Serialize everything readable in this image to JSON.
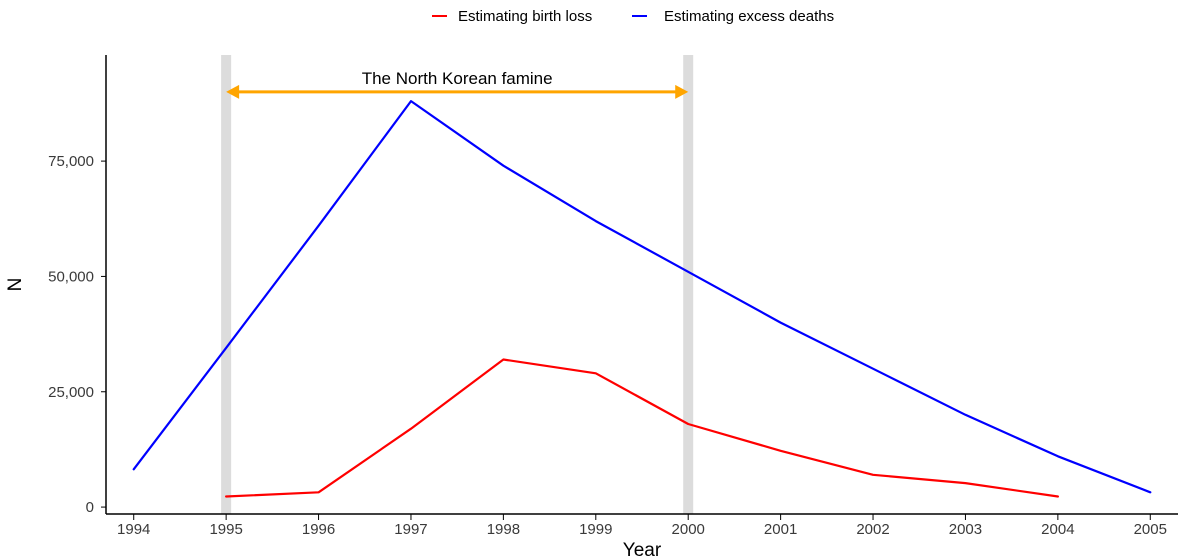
{
  "chart_data": {
    "type": "line",
    "title": "",
    "xlabel": "Year",
    "ylabel": "N",
    "x": [
      1994,
      1995,
      1996,
      1997,
      1998,
      1999,
      2000,
      2001,
      2002,
      2003,
      2004,
      2005
    ],
    "xlim": [
      1993.7,
      2005.3
    ],
    "ylim": [
      -1500,
      98000
    ],
    "y_ticks": [
      0,
      25000,
      50000,
      75000
    ],
    "y_tick_labels": [
      "0",
      "25,000",
      "50,000",
      "75,000"
    ],
    "x_tick_labels": [
      "1994",
      "1995",
      "1996",
      "1997",
      "1998",
      "1999",
      "2000",
      "2001",
      "2002",
      "2003",
      "2004",
      "2005"
    ],
    "grid": false,
    "legend_position": "top",
    "series": [
      {
        "name": "Estimating birth loss",
        "color": "#ff0000",
        "x": [
          1995,
          1996,
          1997,
          1998,
          1999,
          2000,
          2001,
          2002,
          2003,
          2004
        ],
        "values": [
          2300,
          3200,
          17000,
          32000,
          29000,
          18000,
          12200,
          7000,
          5200,
          2300
        ]
      },
      {
        "name": "Estimating excess deaths",
        "color": "#0000ff",
        "x": [
          1994,
          1995,
          1996,
          1997,
          1998,
          1999,
          2000,
          2001,
          2002,
          2003,
          2004,
          2005
        ],
        "values": [
          8200,
          34500,
          61000,
          88000,
          74000,
          62000,
          51000,
          40000,
          30000,
          20000,
          11000,
          3200
        ]
      }
    ],
    "annotations": {
      "shaded_years": [
        1995,
        2000
      ],
      "shade_color": "#dcdcdc",
      "arrow": {
        "from": 1995,
        "to": 2000,
        "y": 90000,
        "color": "#ffa500",
        "label": "The North Korean famine"
      }
    }
  }
}
